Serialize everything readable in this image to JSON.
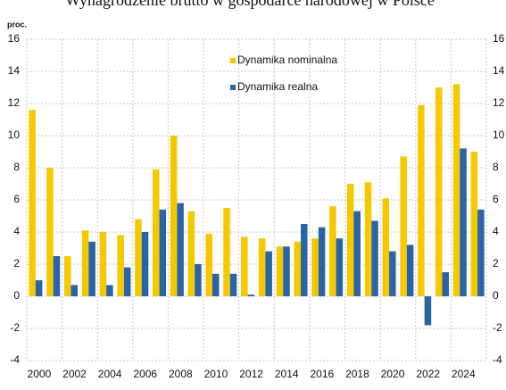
{
  "chart_data": {
    "type": "bar",
    "title": "Wynagrodzenie brutto w gospodarce narodowej w Polsce",
    "ylabel": "proc.",
    "categories": [
      "2000",
      null,
      "2002",
      null,
      "2004",
      null,
      "2006",
      null,
      "2008",
      null,
      "2010",
      null,
      "2012",
      null,
      "2014",
      null,
      "2016",
      null,
      "2018",
      null,
      "2020",
      null,
      "2022",
      null,
      "2024",
      null
    ],
    "series": [
      {
        "name": "Dynamika nominalna",
        "color": "#f5c800",
        "values": [
          11.6,
          8.0,
          2.5,
          4.1,
          4.0,
          3.8,
          4.8,
          7.9,
          10.0,
          5.3,
          3.9,
          5.5,
          3.7,
          3.6,
          3.1,
          3.4,
          3.6,
          5.6,
          7.0,
          7.1,
          6.1,
          8.7,
          11.9,
          13.0,
          13.2,
          9.0
        ]
      },
      {
        "name": "Dynamika realna",
        "color": "#2a64a8",
        "values": [
          1.0,
          2.5,
          0.7,
          3.4,
          0.7,
          1.8,
          4.0,
          5.4,
          5.8,
          2.0,
          1.4,
          1.4,
          0.1,
          2.8,
          3.1,
          4.5,
          4.3,
          3.6,
          5.3,
          4.7,
          2.8,
          3.2,
          -1.8,
          1.5,
          9.2,
          5.4
        ]
      }
    ],
    "ylim": [
      -4,
      16
    ],
    "yticks": [
      -4,
      -2,
      0,
      2,
      4,
      6,
      8,
      10,
      12,
      14,
      16
    ],
    "y2lim": [
      -4,
      16
    ],
    "y2ticks": [
      -4,
      -2,
      0,
      2,
      4,
      6,
      8,
      10,
      12,
      14,
      16
    ],
    "grid": true
  }
}
